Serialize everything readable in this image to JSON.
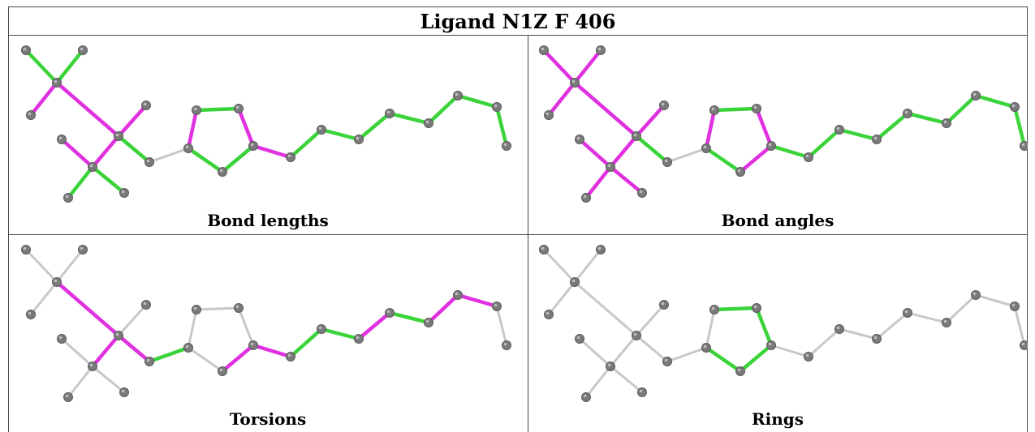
{
  "title": "Ligand N1Z F 406",
  "panels": [
    {
      "id": "bond-lengths",
      "caption": "Bond lengths"
    },
    {
      "id": "bond-angles",
      "caption": "Bond angles"
    },
    {
      "id": "torsions",
      "caption": "Torsions"
    },
    {
      "id": "rings",
      "caption": "Rings"
    }
  ],
  "colors": {
    "outlier": "#e030e0",
    "acceptable": "#3ad43a",
    "unassessed": "#c8c8c8",
    "atom": "#7a7a7a"
  }
}
